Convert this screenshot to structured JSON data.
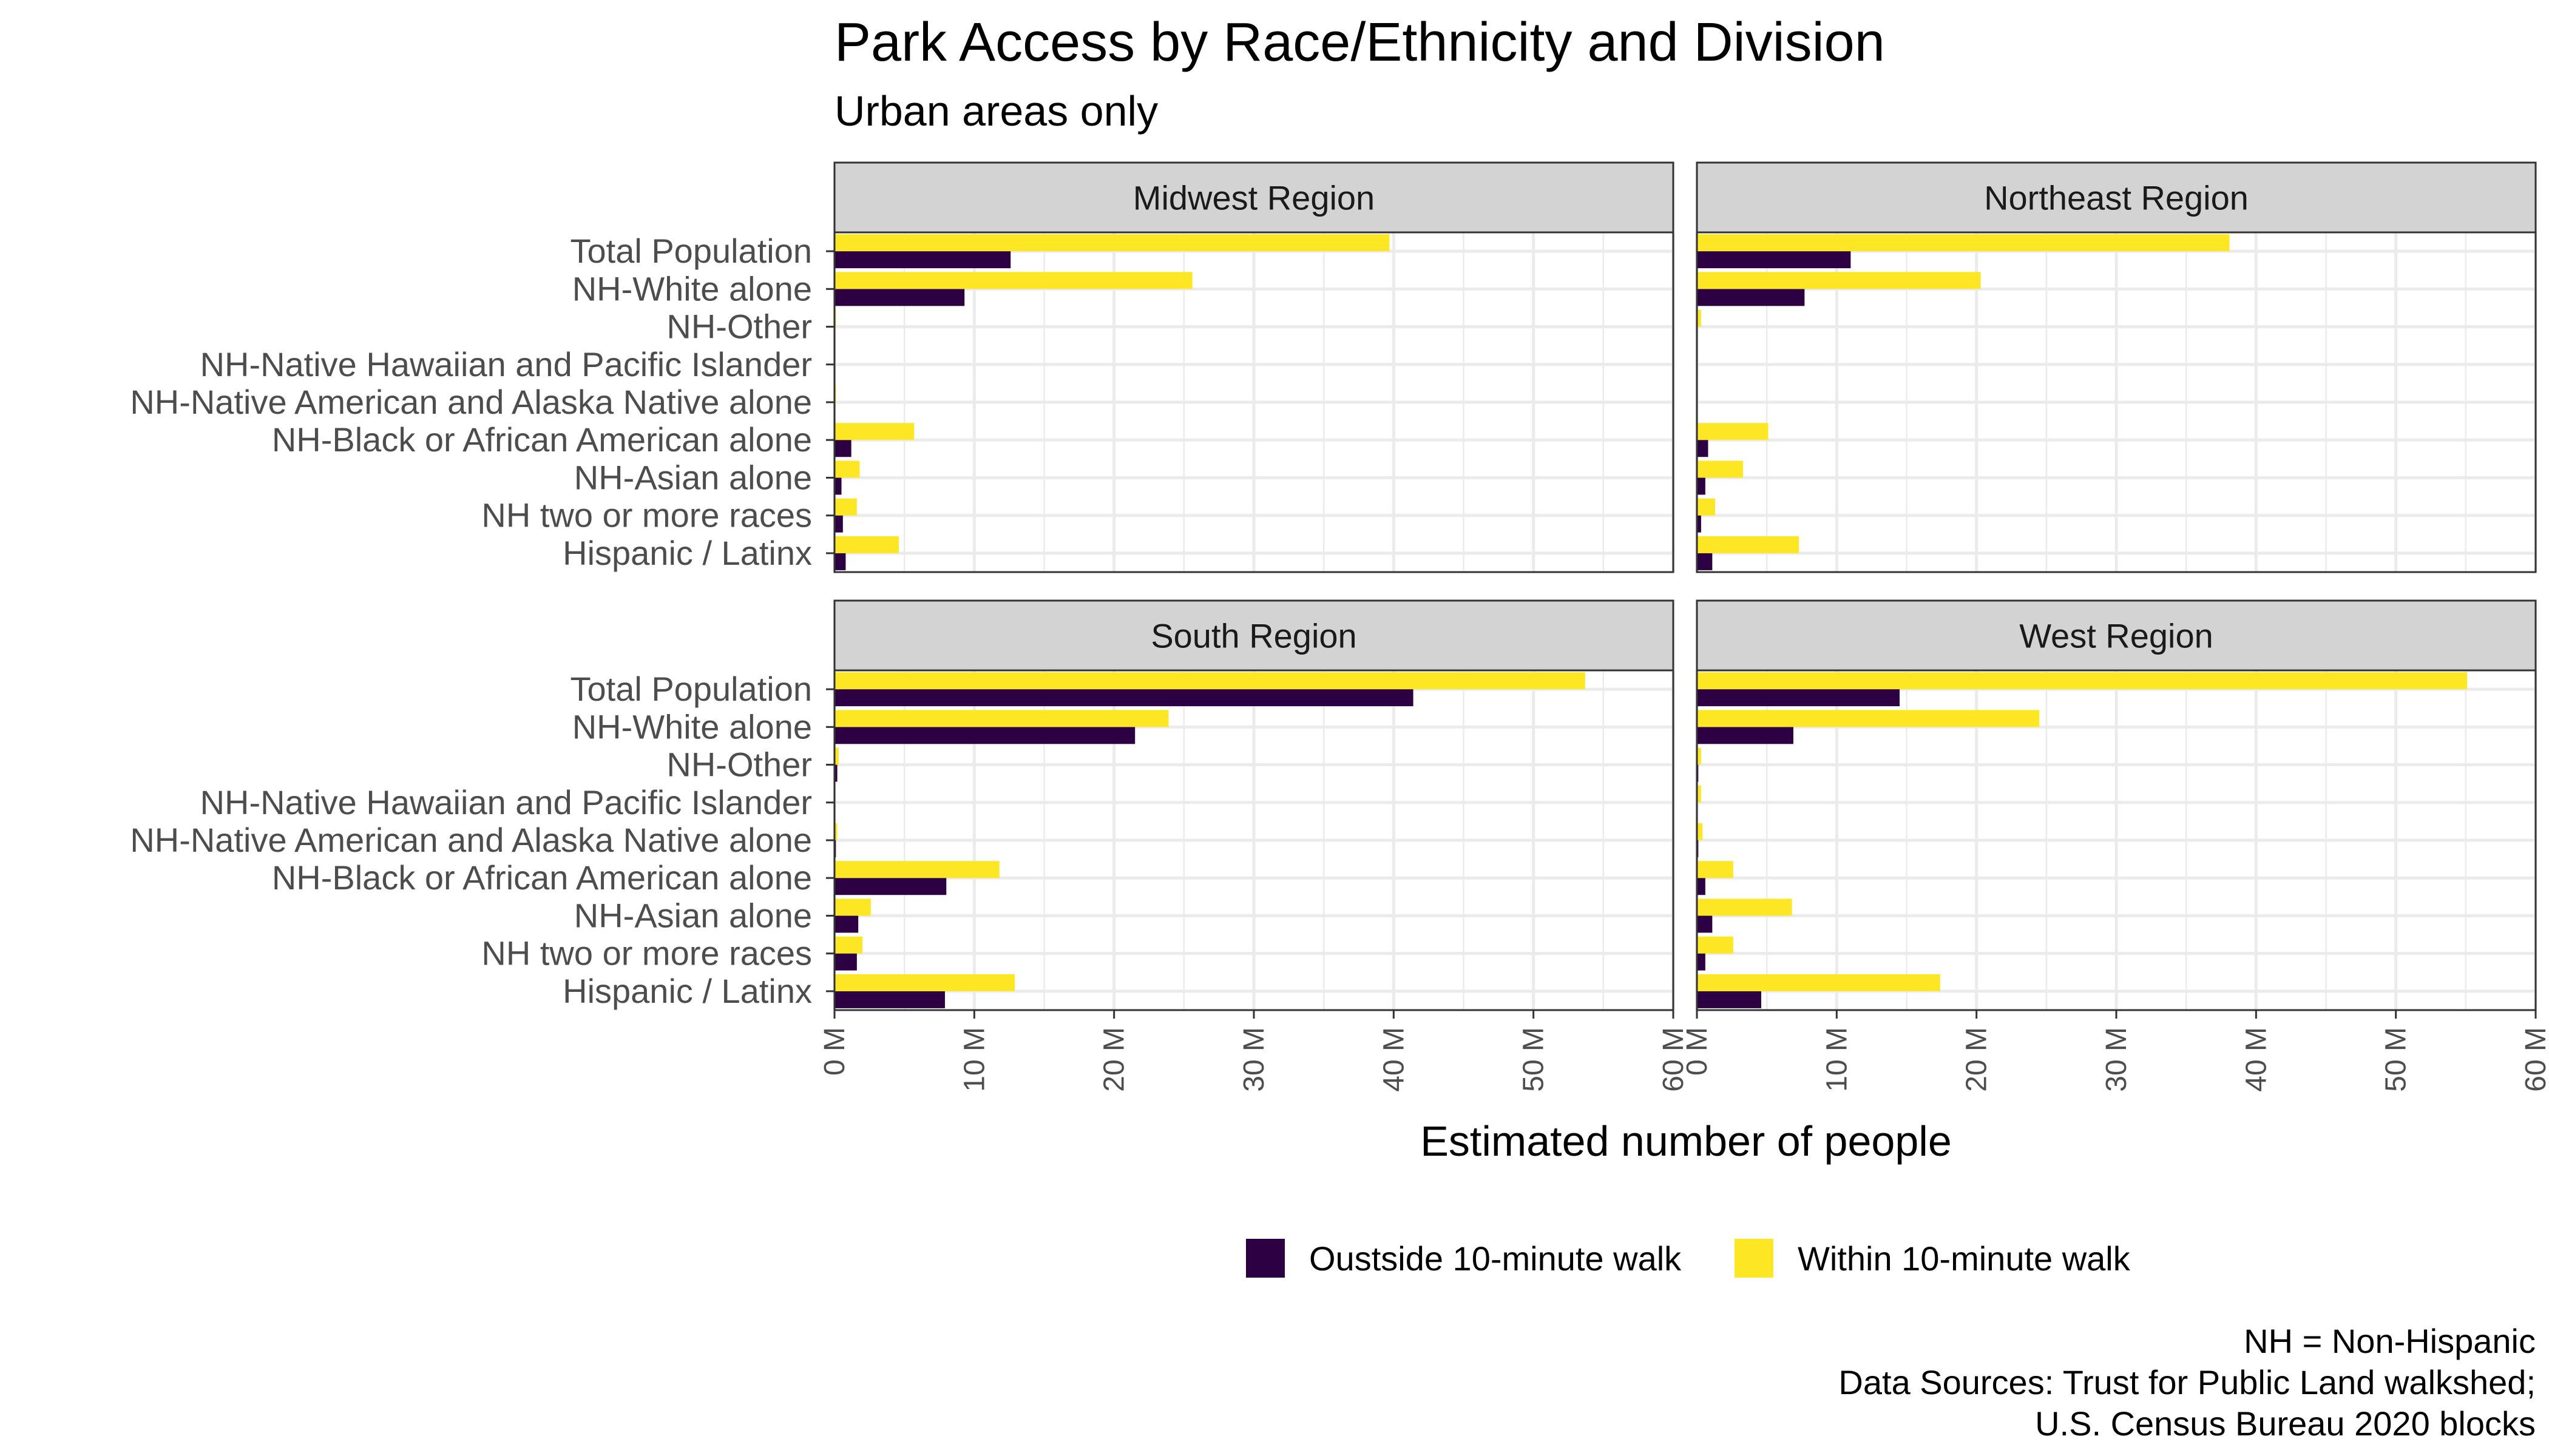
{
  "title": "Park Access by Race/Ethnicity and Division",
  "subtitle": "Urban areas only",
  "xlabel": "Estimated number of people",
  "legend": [
    {
      "name": "Oustside 10-minute walk",
      "color": "#2d0044"
    },
    {
      "name": "Within 10-minute walk",
      "color": "#fde725"
    }
  ],
  "caption": [
    "NH = Non-Hispanic",
    "Data Sources: Trust for Public Land walkshed;",
    "U.S. Census Bureau 2020 blocks"
  ],
  "chart_data": {
    "type": "bar",
    "orientation": "horizontal",
    "title": "Park Access by Race/Ethnicity and Division",
    "subtitle": "Urban areas only",
    "xlabel": "Estimated number of people",
    "xlim": [
      0,
      60
    ],
    "xticks": [
      "0 M",
      "10 M",
      "20 M",
      "30 M",
      "40 M",
      "50 M",
      "60 M"
    ],
    "grid": true,
    "legend_position": "bottom",
    "categories": [
      "Total Population",
      "NH-White alone",
      "NH-Other",
      "NH-Native Hawaiian and Pacific Islander",
      "NH-Native American and Alaska Native alone",
      "NH-Black or African American alone",
      "NH-Asian alone",
      "NH two or more races",
      "Hispanic / Latinx"
    ],
    "series_names": [
      "Oustside 10-minute walk",
      "Within 10-minute walk"
    ],
    "panels": [
      {
        "name": "Midwest Region",
        "series": [
          {
            "name": "Oustside 10-minute walk",
            "values": [
              12.6,
              9.3,
              0.05,
              0.01,
              0.05,
              1.2,
              0.5,
              0.6,
              0.8
            ]
          },
          {
            "name": "Within 10-minute walk",
            "values": [
              39.7,
              25.6,
              0.1,
              0.02,
              0.1,
              5.7,
              1.8,
              1.6,
              4.6
            ]
          }
        ]
      },
      {
        "name": "Northeast Region",
        "series": [
          {
            "name": "Oustside 10-minute walk",
            "values": [
              11.0,
              7.7,
              0.05,
              0.01,
              0.03,
              0.8,
              0.6,
              0.3,
              1.1
            ]
          },
          {
            "name": "Within 10-minute walk",
            "values": [
              38.1,
              20.3,
              0.3,
              0.02,
              0.05,
              5.1,
              3.3,
              1.3,
              7.3
            ]
          }
        ]
      },
      {
        "name": "South Region",
        "series": [
          {
            "name": "Oustside 10-minute walk",
            "values": [
              41.4,
              21.5,
              0.2,
              0.02,
              0.1,
              8.0,
              1.7,
              1.6,
              7.9
            ]
          },
          {
            "name": "Within 10-minute walk",
            "values": [
              53.7,
              23.9,
              0.3,
              0.05,
              0.2,
              11.8,
              2.6,
              2.0,
              12.9
            ]
          }
        ]
      },
      {
        "name": "West Region",
        "series": [
          {
            "name": "Oustside 10-minute walk",
            "values": [
              14.5,
              6.9,
              0.1,
              0.05,
              0.1,
              0.6,
              1.1,
              0.6,
              4.6
            ]
          },
          {
            "name": "Within 10-minute walk",
            "values": [
              55.1,
              24.5,
              0.3,
              0.3,
              0.4,
              2.6,
              6.8,
              2.6,
              17.4
            ]
          }
        ]
      }
    ]
  }
}
